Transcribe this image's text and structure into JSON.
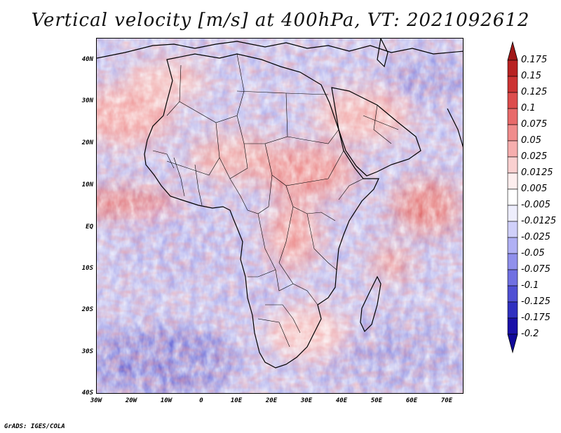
{
  "title": "Vertical velocity [m/s] at 400hPa, VT: 2021092612",
  "credit": "GrADS: IGES/COLA",
  "map": {
    "region": "Africa",
    "lat_labels": [
      "40N",
      "30N",
      "20N",
      "10N",
      "EQ",
      "10S",
      "20S",
      "30S",
      "40S"
    ],
    "lon_labels": [
      "30W",
      "20W",
      "10W",
      "0",
      "10E",
      "20E",
      "30E",
      "40E",
      "50E",
      "60E",
      "70E"
    ]
  },
  "colorbar": {
    "labels": [
      "0.175",
      "0.15",
      "0.125",
      "0.1",
      "0.075",
      "0.05",
      "0.025",
      "0.0125",
      "0.005",
      "-0.005",
      "-0.0125",
      "-0.025",
      "-0.05",
      "-0.075",
      "-0.1",
      "-0.125",
      "-0.175",
      "-0.2"
    ],
    "colors": [
      "#a01818",
      "#b82222",
      "#cc3333",
      "#dd4c4c",
      "#e86a6a",
      "#f08c8c",
      "#f6aeae",
      "#fad0d0",
      "#fdeeee",
      "#ffffff",
      "#eeeefd",
      "#d0d0fa",
      "#b0b0f4",
      "#9090ec",
      "#7070e2",
      "#5050d4",
      "#3030c0",
      "#1a10a8",
      "#10089a"
    ]
  },
  "colors": {
    "red": "#c83030",
    "blue": "#3030c0",
    "base_blue": "#b8b8f0"
  }
}
